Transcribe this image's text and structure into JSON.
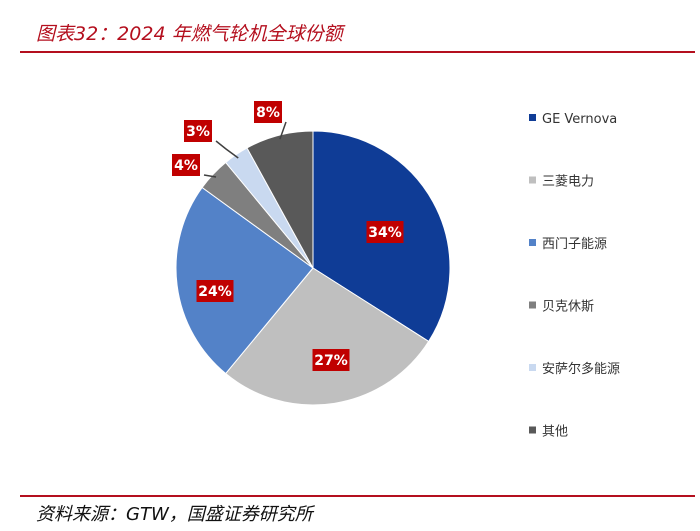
{
  "header": {
    "title": "图表32：2024 年燃气轮机全球份额"
  },
  "footer": {
    "source": "资料来源：GTW，国盛证券研究所"
  },
  "colors": {
    "accent": "#b40f1e",
    "label_bg": "#c00000"
  },
  "chart_data": {
    "type": "pie",
    "start_angle_deg": 0,
    "direction": "clockwise",
    "legend_position": "right",
    "slices": [
      {
        "label": "GE Vernova",
        "value": 34,
        "display": "34%",
        "color": "#0f3c96"
      },
      {
        "label": "三菱电力",
        "value": 27,
        "display": "27%",
        "color": "#bfbfbf"
      },
      {
        "label": "西门子能源",
        "value": 24,
        "display": "24%",
        "color": "#5382c8"
      },
      {
        "label": "贝克休斯",
        "value": 4,
        "display": "4%",
        "color": "#7f7f7f"
      },
      {
        "label": "安萨尔多能源",
        "value": 3,
        "display": "3%",
        "color": "#c9d9f0"
      },
      {
        "label": "其他",
        "value": 8,
        "display": "8%",
        "color": "#595959"
      }
    ]
  }
}
